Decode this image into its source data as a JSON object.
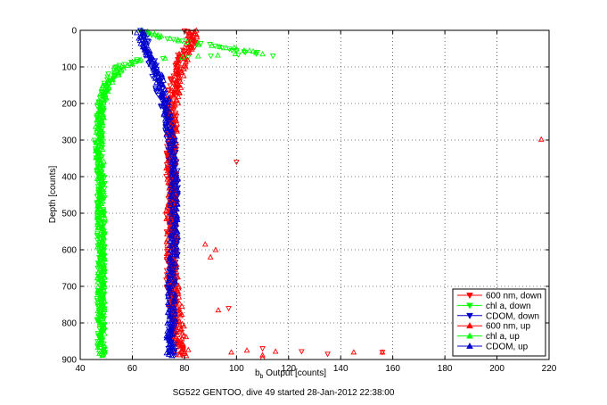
{
  "chart_data": {
    "type": "scatter",
    "title": "",
    "xlabel_main": "b",
    "xlabel_sub": "b",
    "xlabel_rest": " Output [counts]",
    "ylabel": "Depth [counts]",
    "caption": "SG522 GENTOO, dive 49 started 28-Jan-2012 22:38:00",
    "xlim": [
      40,
      220
    ],
    "ylim": [
      0,
      900
    ],
    "y_reversed": true,
    "grid": true,
    "legend_position": "bottom-right",
    "xticks": [
      "40",
      "60",
      "80",
      "100",
      "120",
      "140",
      "160",
      "180",
      "200",
      "220"
    ],
    "yticks": [
      "0",
      "100",
      "200",
      "300",
      "400",
      "500",
      "600",
      "700",
      "800",
      "900"
    ],
    "series": [
      {
        "name": "600 nm, down",
        "color": "#ff0000",
        "marker": "triangle-down",
        "profile": [
          [
            0,
            82
          ],
          [
            20,
            82
          ],
          [
            40,
            83
          ],
          [
            60,
            80
          ],
          [
            80,
            78
          ],
          [
            100,
            77
          ],
          [
            150,
            76
          ],
          [
            200,
            75
          ],
          [
            300,
            75
          ],
          [
            400,
            75
          ],
          [
            500,
            75
          ],
          [
            600,
            75
          ],
          [
            700,
            75
          ],
          [
            800,
            76
          ],
          [
            850,
            77
          ],
          [
            890,
            78
          ]
        ],
        "spread": 2.0,
        "outliers": [
          [
            100,
            360
          ],
          [
            97,
            760
          ],
          [
            110,
            870
          ],
          [
            135,
            885
          ],
          [
            156,
            880
          ],
          [
            125,
            878
          ]
        ]
      },
      {
        "name": "chl a, down",
        "color": "#00ff00",
        "marker": "triangle-down",
        "profile": [
          [
            0,
            62
          ],
          [
            20,
            70
          ],
          [
            40,
            90
          ],
          [
            55,
            100
          ],
          [
            65,
            108
          ],
          [
            80,
            62
          ],
          [
            100,
            55
          ],
          [
            120,
            52
          ],
          [
            150,
            50
          ],
          [
            200,
            48
          ],
          [
            300,
            47
          ],
          [
            400,
            48
          ],
          [
            500,
            48
          ],
          [
            600,
            48
          ],
          [
            700,
            48
          ],
          [
            800,
            48
          ],
          [
            890,
            48
          ]
        ],
        "spread": 1.5,
        "outliers": [
          [
            114,
            70
          ],
          [
            108,
            60
          ],
          [
            100,
            55
          ]
        ]
      },
      {
        "name": "CDOM, down",
        "color": "#0000cc",
        "marker": "triangle-down",
        "profile": [
          [
            0,
            64
          ],
          [
            30,
            65
          ],
          [
            60,
            66
          ],
          [
            100,
            68
          ],
          [
            150,
            70
          ],
          [
            200,
            72
          ],
          [
            300,
            75
          ],
          [
            400,
            76
          ],
          [
            500,
            76
          ],
          [
            600,
            76
          ],
          [
            700,
            75
          ],
          [
            800,
            75
          ],
          [
            890,
            75
          ]
        ],
        "spread": 1.6,
        "outliers": []
      },
      {
        "name": "600 nm, up",
        "color": "#ff0000",
        "marker": "triangle-up",
        "profile": [
          [
            0,
            83
          ],
          [
            30,
            83
          ],
          [
            60,
            80
          ],
          [
            90,
            79
          ],
          [
            120,
            78
          ],
          [
            200,
            76
          ],
          [
            300,
            75
          ],
          [
            400,
            75
          ],
          [
            500,
            75
          ],
          [
            600,
            75
          ],
          [
            700,
            76
          ],
          [
            800,
            78
          ],
          [
            850,
            79
          ],
          [
            890,
            80
          ]
        ],
        "spread": 2.0,
        "outliers": [
          [
            217,
            298
          ],
          [
            88,
            585
          ],
          [
            92,
            600
          ],
          [
            90,
            620
          ],
          [
            93,
            765
          ],
          [
            98,
            880
          ],
          [
            104,
            875
          ],
          [
            110,
            888
          ],
          [
            115,
            878
          ],
          [
            145,
            880
          ],
          [
            156,
            880
          ],
          [
            110,
            895
          ]
        ]
      },
      {
        "name": "chl a, up",
        "color": "#00ff00",
        "marker": "triangle-up",
        "profile": [
          [
            0,
            65
          ],
          [
            20,
            72
          ],
          [
            40,
            88
          ],
          [
            50,
            100
          ],
          [
            60,
            110
          ],
          [
            80,
            64
          ],
          [
            100,
            56
          ],
          [
            150,
            50
          ],
          [
            200,
            48
          ],
          [
            300,
            47
          ],
          [
            400,
            48
          ],
          [
            500,
            48
          ],
          [
            600,
            48
          ],
          [
            700,
            48
          ],
          [
            800,
            48
          ],
          [
            890,
            48
          ]
        ],
        "spread": 1.5,
        "outliers": [
          [
            105,
            55
          ],
          [
            110,
            65
          ],
          [
            96,
            48
          ]
        ]
      },
      {
        "name": "CDOM, up",
        "color": "#0000cc",
        "marker": "triangle-up",
        "profile": [
          [
            0,
            63
          ],
          [
            30,
            64
          ],
          [
            60,
            66
          ],
          [
            100,
            69
          ],
          [
            150,
            71
          ],
          [
            200,
            73
          ],
          [
            300,
            75
          ],
          [
            400,
            76
          ],
          [
            500,
            76
          ],
          [
            600,
            76
          ],
          [
            700,
            75
          ],
          [
            800,
            75
          ],
          [
            890,
            74
          ]
        ],
        "spread": 1.6,
        "outliers": []
      }
    ]
  }
}
